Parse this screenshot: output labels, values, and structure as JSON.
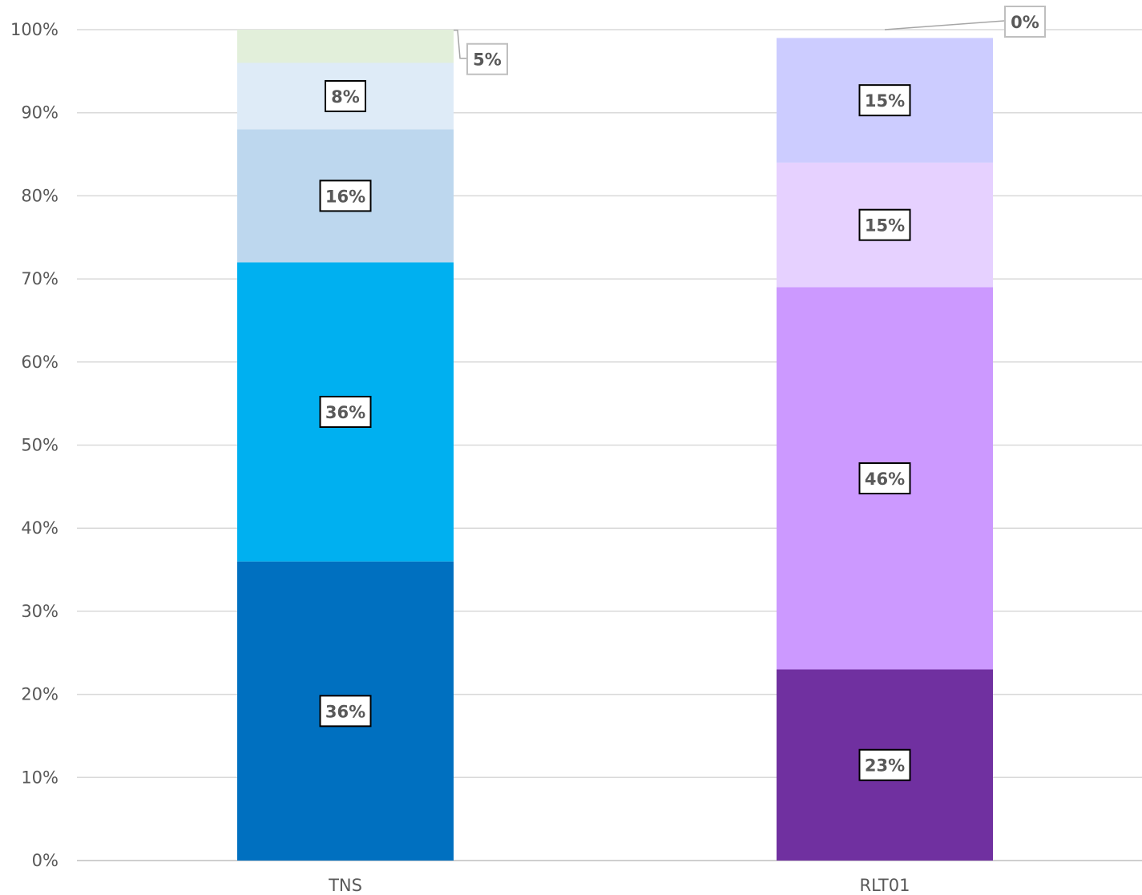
{
  "chart_data": {
    "type": "bar",
    "stacked": "percent",
    "categories": [
      "TNS",
      "RLT01"
    ],
    "y_ticks": [
      "0%",
      "10%",
      "20%",
      "30%",
      "40%",
      "50%",
      "60%",
      "70%",
      "80%",
      "90%",
      "100%"
    ],
    "ylim": [
      0,
      100
    ],
    "grid": "horizontal",
    "legend": "none",
    "bars": [
      {
        "category": "TNS",
        "segments": [
          {
            "value": 36,
            "label": "36%",
            "color": "#0070C0"
          },
          {
            "value": 36,
            "label": "36%",
            "color": "#00B0F0"
          },
          {
            "value": 16,
            "label": "16%",
            "color": "#BDD7EE"
          },
          {
            "value": 8,
            "label": "8%",
            "color": "#DEEBF7"
          },
          {
            "value": 5,
            "label": "5%",
            "color": "#E2EFDA",
            "callout": true
          }
        ]
      },
      {
        "category": "RLT01",
        "segments": [
          {
            "value": 23,
            "label": "23%",
            "color": "#7030A0"
          },
          {
            "value": 46,
            "label": "46%",
            "color": "#CC99FF"
          },
          {
            "value": 15,
            "label": "15%",
            "color": "#E6D1FF"
          },
          {
            "value": 15,
            "label": "15%",
            "color": "#CCCCFF"
          },
          {
            "value": 0,
            "label": "0%",
            "color": "#CCCCFF",
            "callout": true
          }
        ]
      }
    ]
  }
}
